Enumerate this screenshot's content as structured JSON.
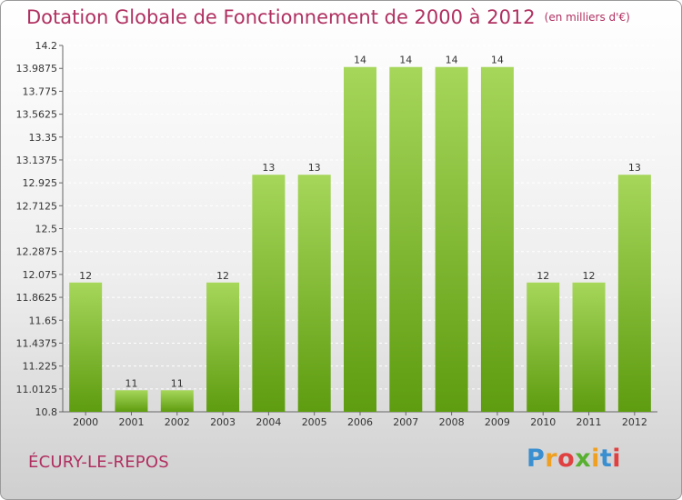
{
  "header": {
    "title": "Dotation Globale de Fonctionnement de 2000 à 2012",
    "unit": "(en milliers d'€)"
  },
  "footer": {
    "commune": "ÉCURY-LE-REPOS",
    "logo": [
      "P",
      "r",
      "o",
      "x",
      "i",
      "t",
      "i"
    ]
  },
  "colors": {
    "bar_light": "#a6d65a",
    "bar_dark": "#5e9c10",
    "title": "#b03060",
    "grid": "#ffffff"
  },
  "chart_data": {
    "type": "bar",
    "title": "Dotation Globale de Fonctionnement de 2000 à 2012",
    "subtitle": "(en milliers d'€)",
    "xlabel": "",
    "ylabel": "",
    "categories": [
      "2000",
      "2001",
      "2002",
      "2003",
      "2004",
      "2005",
      "2006",
      "2007",
      "2008",
      "2009",
      "2010",
      "2011",
      "2012"
    ],
    "values": [
      12,
      11,
      11,
      12,
      13,
      13,
      14,
      14,
      14,
      14,
      12,
      12,
      13
    ],
    "value_labels": [
      "12",
      "11",
      "11",
      "12",
      "13",
      "13",
      "14",
      "14",
      "14",
      "14",
      "12",
      "12",
      "13"
    ],
    "ylim": [
      10.8,
      14.2
    ],
    "yticks": [
      10.8,
      11.0125,
      11.225,
      11.4375,
      11.65,
      11.8625,
      12.075,
      12.2875,
      12.5,
      12.7125,
      12.925,
      13.1375,
      13.35,
      13.5625,
      13.775,
      13.9875,
      14.2
    ],
    "ytick_labels": [
      "10.8",
      "11.0125",
      "11.225",
      "11.4375",
      "11.65",
      "11.8625",
      "12.075",
      "12.2875",
      "12.5",
      "12.7125",
      "12.925",
      "13.1375",
      "13.35",
      "13.5625",
      "13.775",
      "13.9875",
      "14.2"
    ],
    "grid": true,
    "legend": "none"
  }
}
